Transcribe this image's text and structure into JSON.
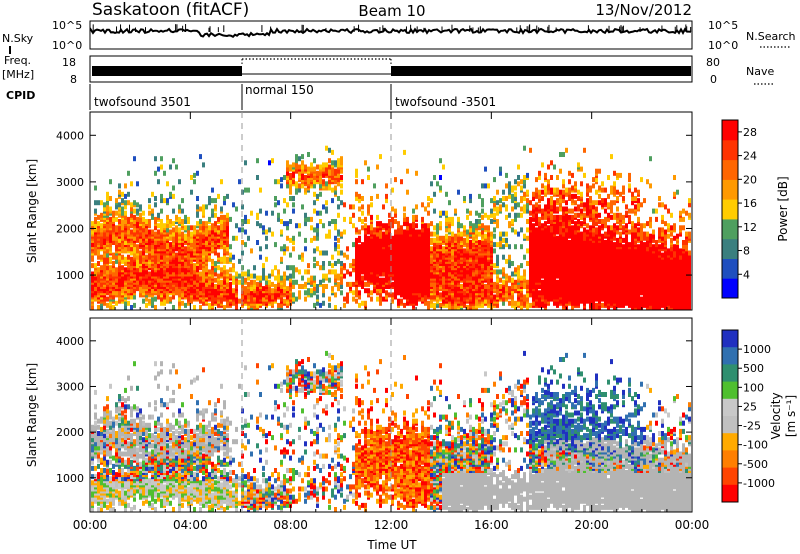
{
  "header": {
    "station": "Saskatoon (fitACF)",
    "beam": "Beam 10",
    "date": "13/Nov/2012"
  },
  "strips": {
    "nsky_label": "N.Sky",
    "nsky_ticks": [
      "10^5",
      "10^0"
    ],
    "nsearch_label": "N.Search",
    "nsearch_ticks": [
      "10^5",
      "10^0"
    ],
    "freq_label": "Freq.",
    "freq_unit": "[MHz]",
    "freq_ticks": [
      "18",
      "8"
    ],
    "nave_label": "Nave",
    "nave_ticks": [
      "80",
      "0"
    ],
    "cpid_label": "CPID",
    "cpid_segments": [
      "twofsound 3501",
      "normal 150",
      "twofsound -3501"
    ]
  },
  "colors": {
    "power_scale": [
      "#0000ff",
      "#1f4fbf",
      "#3a7f7f",
      "#4f9f5f",
      "#ffcc00",
      "#ff9900",
      "#ff6600",
      "#ff3300",
      "#ff0000"
    ],
    "velocity_scale": [
      "#2030c0",
      "#3070b0",
      "#2f8f6f",
      "#4fbf2f",
      "#c8c8c8",
      "#c0c0c0",
      "#ffaa00",
      "#ff7f00",
      "#ff4400",
      "#ff0000"
    ],
    "ground_scatter": "#b4b4b4"
  },
  "chart_data": [
    {
      "type": "heatmap",
      "panel": "power",
      "ylabel": "Slant Range [km]",
      "yticks": [
        "1000",
        "2000",
        "3000",
        "4000"
      ],
      "xticks": [
        "00:00",
        "04:00",
        "08:00",
        "12:00",
        "16:00",
        "20:00",
        "00:00"
      ],
      "ylim": [
        250,
        4500
      ],
      "colorbar_label": "Power [dB]",
      "colorbar_ticks": [
        "28",
        "24",
        "20",
        "16",
        "12",
        "8",
        "4"
      ],
      "colorbar_range": [
        0,
        30
      ]
    },
    {
      "type": "heatmap",
      "panel": "velocity",
      "ylabel": "Slant Range [km]",
      "yticks": [
        "1000",
        "2000",
        "3000",
        "4000"
      ],
      "xticks": [
        "00:00",
        "04:00",
        "08:00",
        "12:00",
        "16:00",
        "20:00",
        "00:00"
      ],
      "xlabel": "Time UT",
      "ylim": [
        250,
        4500
      ],
      "colorbar_label": "Velocity",
      "colorbar_unit": "[m s⁻¹]",
      "colorbar_ticks": [
        "1000",
        "500",
        "100",
        "25",
        "-25",
        "-100",
        "-500",
        "-1000"
      ]
    }
  ]
}
